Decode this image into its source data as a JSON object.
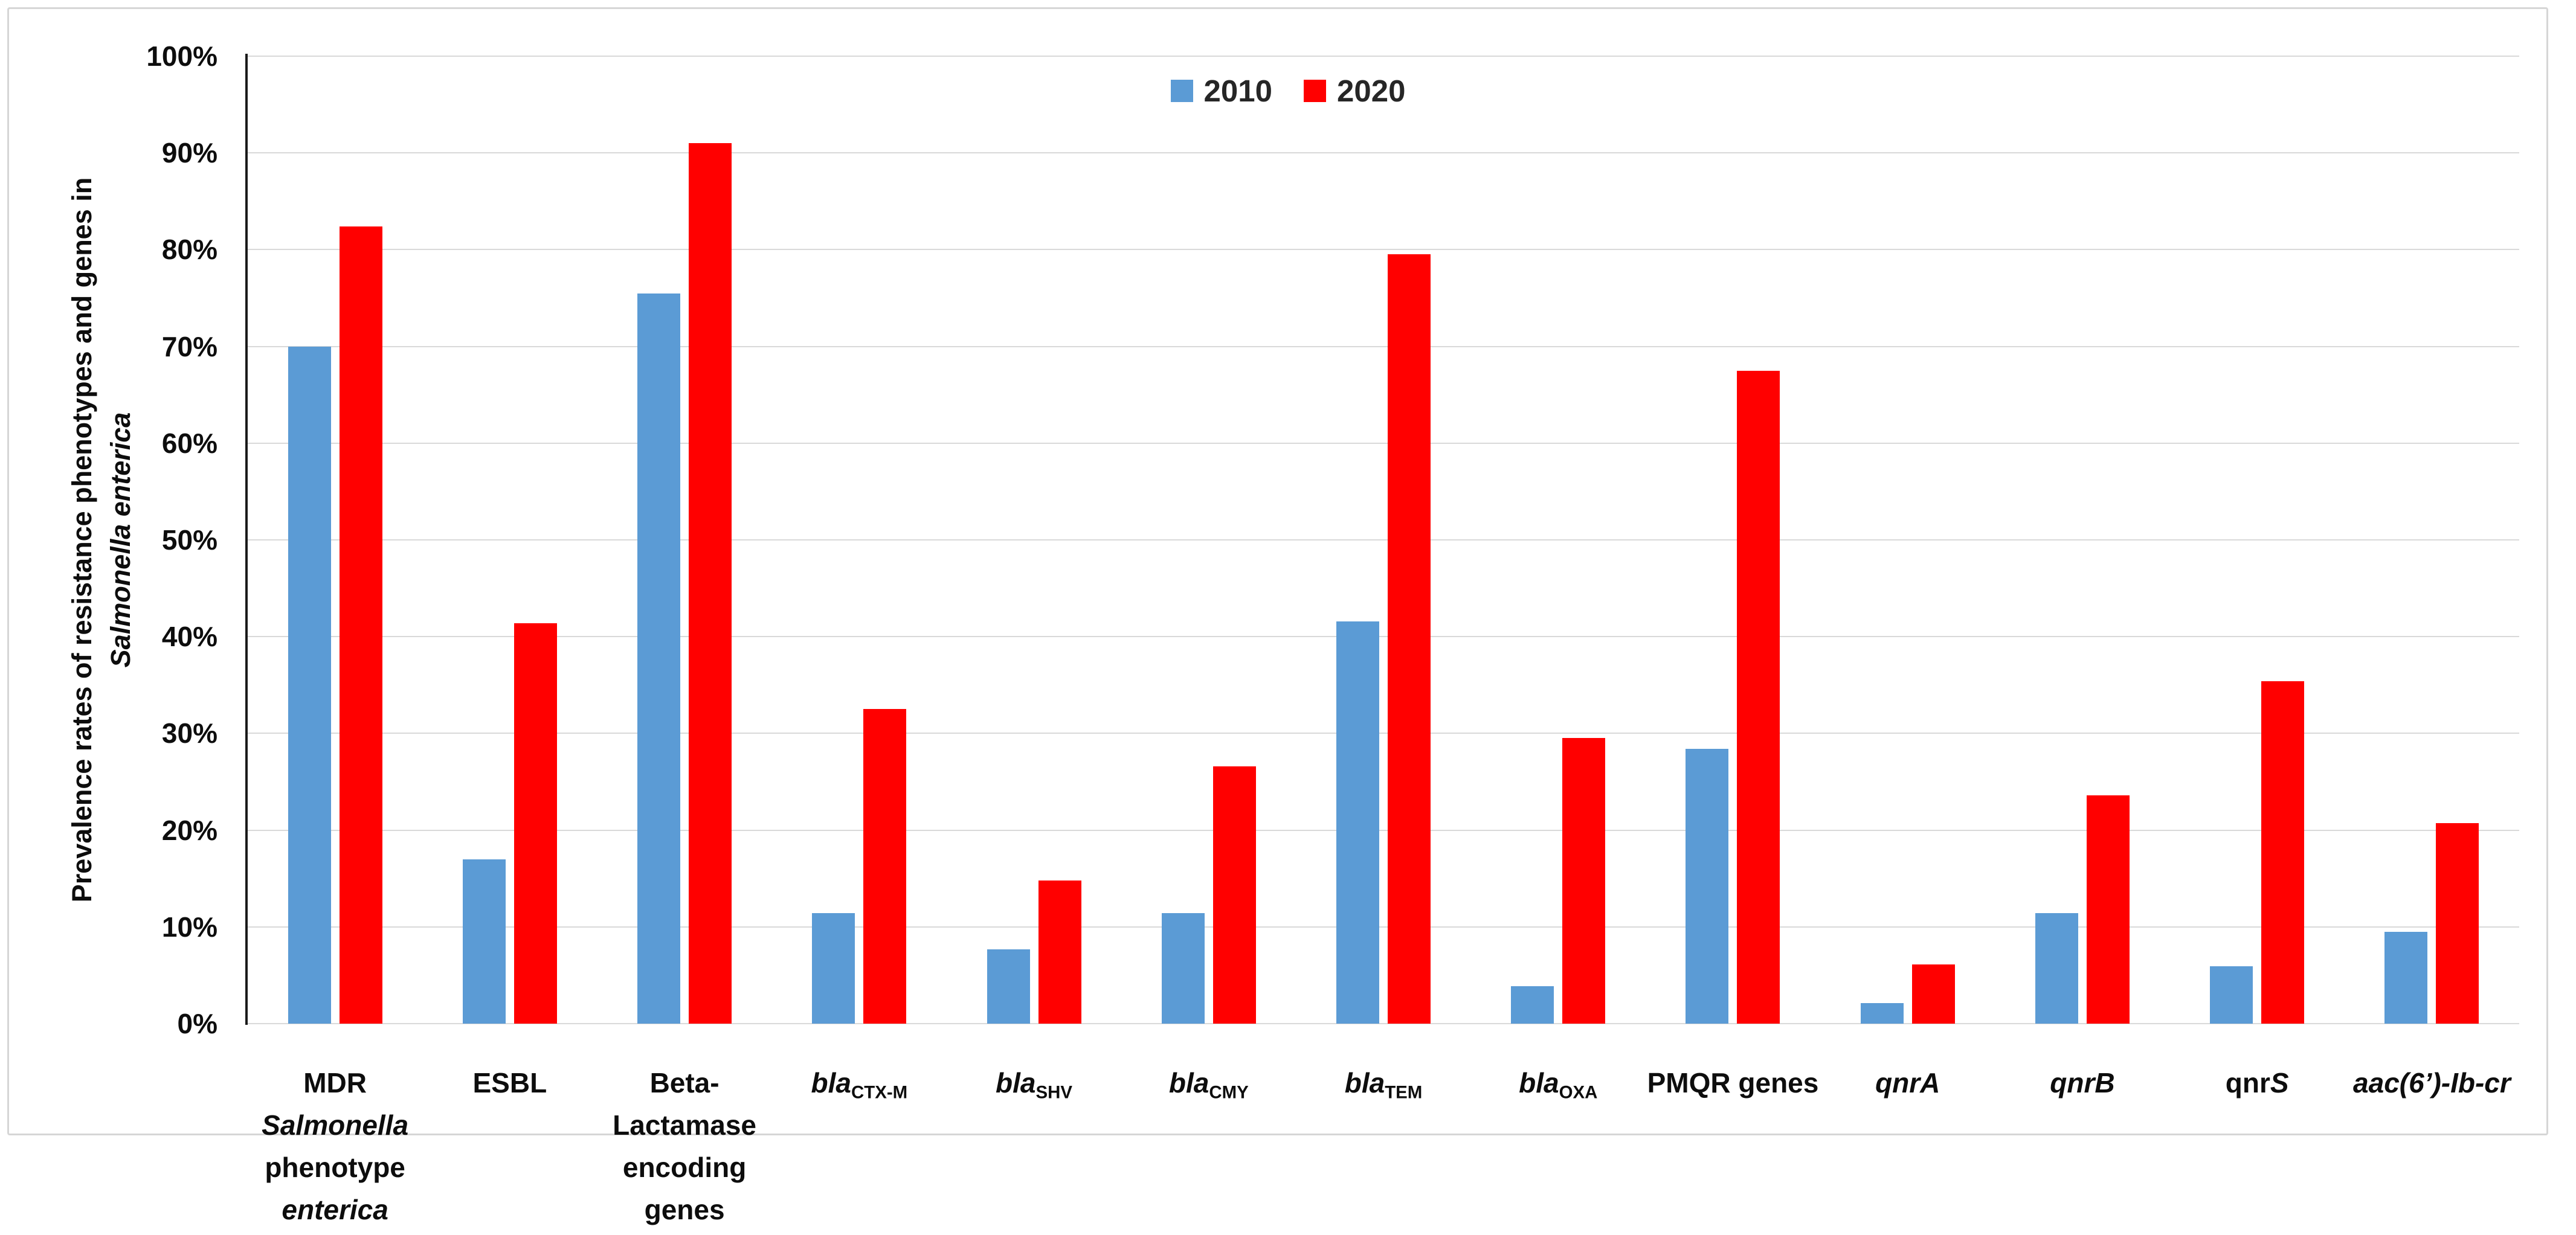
{
  "figure": {
    "background": "#ffffff",
    "border_color": "#d6d6d6"
  },
  "y_axis": {
    "title_line1": "Prevalence rates of resistance phenotypes and genes in",
    "title_line2": "Salmonella enterica",
    "tick_labels": [
      "0%",
      "10%",
      "20%",
      "30%",
      "40%",
      "50%",
      "60%",
      "70%",
      "80%",
      "90%",
      "100%"
    ],
    "tick_step": 10
  },
  "chart_data": {
    "type": "bar",
    "title": "",
    "xlabel": "",
    "ylabel": "Prevalence rates of resistance phenotypes and genes in Salmonella enterica",
    "ylim": [
      0,
      100
    ],
    "grid": true,
    "legend_position": "top-center",
    "series": [
      {
        "name": "2010",
        "color": "#5B9BD5"
      },
      {
        "name": "2020",
        "color": "#FF0000"
      }
    ],
    "categories": [
      {
        "key": "mdr-salmonella-enterica-phenotype",
        "lines": [
          [
            {
              "t": "MDR"
            }
          ],
          [
            {
              "t": "Salmonella",
              "i": true
            }
          ],
          [
            {
              "t": "phenotype"
            }
          ],
          [
            {
              "t": "enterica",
              "i": true
            }
          ]
        ],
        "values": {
          "2010": 70,
          "2020": 82.4
        }
      },
      {
        "key": "esbl",
        "lines": [
          [
            {
              "t": "ESBL"
            }
          ]
        ],
        "values": {
          "2010": 17,
          "2020": 41.4
        }
      },
      {
        "key": "beta-lactamase-encoding-genes",
        "lines": [
          [
            {
              "t": "Beta-"
            }
          ],
          [
            {
              "t": "Lactamase"
            }
          ],
          [
            {
              "t": "encoding"
            }
          ],
          [
            {
              "t": "genes"
            }
          ]
        ],
        "values": {
          "2010": 75.5,
          "2020": 91
        }
      },
      {
        "key": "bla-ctx-m",
        "lines": [
          [
            {
              "t": "bla",
              "i": true
            },
            {
              "t": "CTX-M",
              "sub": true
            }
          ]
        ],
        "values": {
          "2010": 11.4,
          "2020": 32.5
        }
      },
      {
        "key": "bla-shv",
        "lines": [
          [
            {
              "t": "bla",
              "i": true
            },
            {
              "t": "SHV",
              "sub": true
            }
          ]
        ],
        "values": {
          "2010": 7.7,
          "2020": 14.8
        }
      },
      {
        "key": "bla-cmy",
        "lines": [
          [
            {
              "t": "bla",
              "i": true
            },
            {
              "t": "CMY",
              "sub": true
            }
          ]
        ],
        "values": {
          "2010": 11.4,
          "2020": 26.6
        }
      },
      {
        "key": "bla-tem",
        "lines": [
          [
            {
              "t": "bla",
              "i": true
            },
            {
              "t": "TEM",
              "sub": true
            }
          ]
        ],
        "values": {
          "2010": 41.6,
          "2020": 79.5
        }
      },
      {
        "key": "bla-oxa",
        "lines": [
          [
            {
              "t": "bla",
              "i": true
            },
            {
              "t": "OXA",
              "sub": true
            }
          ]
        ],
        "values": {
          "2010": 3.9,
          "2020": 29.5
        }
      },
      {
        "key": "pmqr-genes",
        "lines": [
          [
            {
              "t": "PMQR genes"
            }
          ]
        ],
        "values": {
          "2010": 28.4,
          "2020": 67.5
        }
      },
      {
        "key": "qnra",
        "lines": [
          [
            {
              "t": "qnrA",
              "i": true
            }
          ]
        ],
        "values": {
          "2010": 2.1,
          "2020": 6.1
        }
      },
      {
        "key": "qnrb",
        "lines": [
          [
            {
              "t": "qnrB",
              "i": true
            }
          ]
        ],
        "values": {
          "2010": 11.4,
          "2020": 23.6
        }
      },
      {
        "key": "qnrs",
        "lines": [
          [
            {
              "t": "qnr"
            },
            {
              "t": "S",
              "i": true
            }
          ]
        ],
        "values": {
          "2010": 5.9,
          "2020": 35.4
        }
      },
      {
        "key": "aac-6-ib-cr",
        "lines": [
          [
            {
              "t": "aac(6’)-Ib-cr",
              "i": true
            }
          ]
        ],
        "values": {
          "2010": 9.5,
          "2020": 20.7
        }
      }
    ]
  }
}
